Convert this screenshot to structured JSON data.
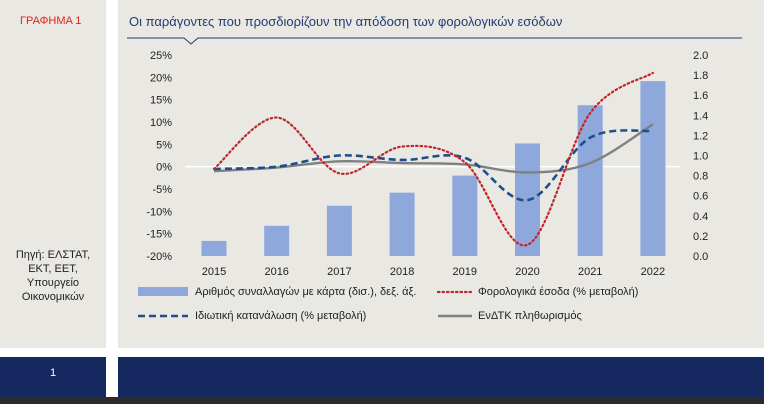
{
  "figure_label": "ΓΡΑΦΗΜΑ 1",
  "source_lines": [
    "Πηγή: ΕΛΣΤΑΤ,",
    "ΕΚΤ, ΕΕΤ,",
    "Υπουργείο",
    "Οικονομικών"
  ],
  "page_number": "1",
  "colors": {
    "bars": "#8fa8dc",
    "tax_revenue": "#c0262d",
    "private_consumption": "#1f4e8c",
    "hicp": "#808080",
    "title": "#1f3d73",
    "label": "#e1231b",
    "footer": "#152860"
  },
  "chart_data": {
    "type": "bar",
    "title": "Οι παράγοντες που προσδιορίζουν την απόδοση των φορολογικών εσόδων",
    "categories": [
      "2015",
      "2016",
      "2017",
      "2018",
      "2019",
      "2020",
      "2021",
      "2022"
    ],
    "y_left": {
      "ticks": [
        "25%",
        "20%",
        "15%",
        "10%",
        "5%",
        "0%",
        "-5%",
        "-10%",
        "-15%",
        "-20%"
      ],
      "range": [
        -20,
        25
      ]
    },
    "y_right": {
      "ticks": [
        "2.0",
        "1.8",
        "1.6",
        "1.4",
        "1.2",
        "1.0",
        "0.8",
        "0.6",
        "0.4",
        "0.2",
        "0.0"
      ],
      "range": [
        0,
        2
      ]
    },
    "series": [
      {
        "name": "Αριθμός συναλλαγών με κάρτα (δισ.), δεξ. άξ.",
        "kind": "bar",
        "axis": "right",
        "values": [
          0.15,
          0.3,
          0.5,
          0.63,
          0.8,
          1.12,
          1.5,
          1.74
        ]
      },
      {
        "name": "Φορολογικά έσοδα (% μεταβολή)",
        "kind": "line-dotted",
        "axis": "left",
        "values": [
          -0.5,
          11,
          -1.5,
          4.5,
          1,
          -17.5,
          12,
          21
        ]
      },
      {
        "name": "Ιδιωτική κατανάλωση (% μεταβολή)",
        "kind": "line-dashed",
        "axis": "left",
        "values": [
          -0.5,
          0,
          2.5,
          1.5,
          2,
          -7.5,
          6.5,
          8
        ]
      },
      {
        "name": "ΕνΔΤΚ πληθωρισμός",
        "kind": "line-solid",
        "axis": "left",
        "values": [
          -1,
          -0.2,
          1.2,
          0.8,
          0.5,
          -1.3,
          0.8,
          9.5
        ]
      }
    ]
  }
}
